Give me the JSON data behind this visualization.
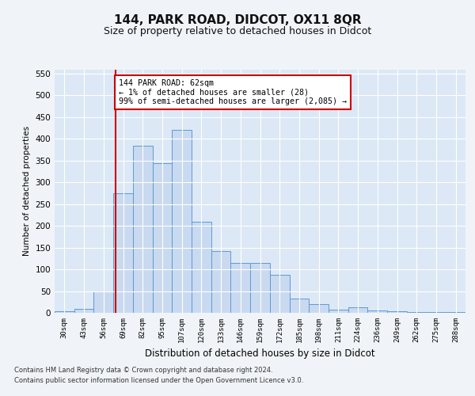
{
  "title": "144, PARK ROAD, DIDCOT, OX11 8QR",
  "subtitle": "Size of property relative to detached houses in Didcot",
  "xlabel": "Distribution of detached houses by size in Didcot",
  "ylabel": "Number of detached properties",
  "categories": [
    "30sqm",
    "43sqm",
    "56sqm",
    "69sqm",
    "82sqm",
    "95sqm",
    "107sqm",
    "120sqm",
    "133sqm",
    "146sqm",
    "159sqm",
    "172sqm",
    "185sqm",
    "198sqm",
    "211sqm",
    "224sqm",
    "236sqm",
    "249sqm",
    "262sqm",
    "275sqm",
    "288sqm"
  ],
  "values": [
    3,
    10,
    50,
    275,
    385,
    345,
    420,
    210,
    142,
    115,
    115,
    88,
    32,
    20,
    8,
    12,
    5,
    3,
    1,
    1,
    1
  ],
  "bar_color": "#c9d9f0",
  "bar_edge_color": "#5b9bd5",
  "bar_width": 1.0,
  "ylim": [
    0,
    560
  ],
  "yticks": [
    0,
    50,
    100,
    150,
    200,
    250,
    300,
    350,
    400,
    450,
    500,
    550
  ],
  "red_line_x": 2.62,
  "annotation_text": "144 PARK ROAD: 62sqm\n← 1% of detached houses are smaller (28)\n99% of semi-detached houses are larger (2,085) →",
  "annotation_box_color": "#ffffff",
  "annotation_box_edge": "#cc0000",
  "fig_bg_color": "#f0f4f8",
  "plot_bg_color": "#dce8f5",
  "footer_line1": "Contains HM Land Registry data © Crown copyright and database right 2024.",
  "footer_line2": "Contains public sector information licensed under the Open Government Licence v3.0.",
  "grid_color": "#ffffff",
  "red_line_color": "#cc0000",
  "title_fontsize": 11,
  "subtitle_fontsize": 9
}
